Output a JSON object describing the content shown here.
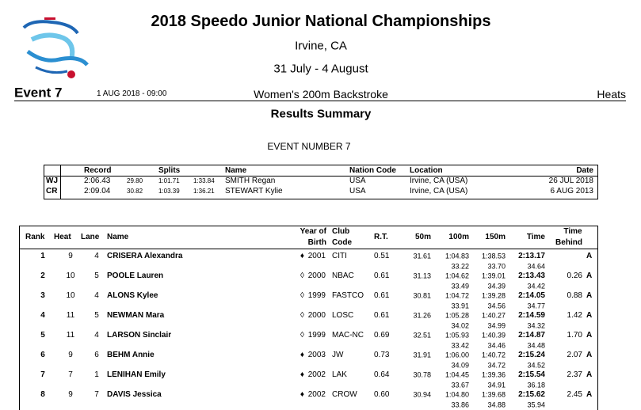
{
  "header": {
    "title": "2018 Speedo Junior National Championships",
    "location": "Irvine, CA",
    "dates": "31 July -  4 August"
  },
  "event": {
    "label": "Event 7",
    "datetime": "1 AUG 2018 - 09:00",
    "name": "Women's 200m Backstroke",
    "round": "Heats"
  },
  "summary_title": "Results Summary",
  "event_number": "EVENT NUMBER 7",
  "records": {
    "headers": [
      "Record",
      "Splits",
      "Name",
      "Nation Code",
      "Location",
      "Date"
    ],
    "rows": [
      {
        "code": "WJ",
        "time": "2:06.43",
        "splits": [
          "29.80",
          "1:01.71",
          "1:33.84"
        ],
        "name": "SMITH Regan",
        "nation": "USA",
        "location": "Irvine, CA (USA)",
        "date": "26 JUL 2018"
      },
      {
        "code": "CR",
        "time": "2:09.04",
        "splits": [
          "30.82",
          "1:03.39",
          "1:36.21"
        ],
        "name": "STEWART Kylie",
        "nation": "USA",
        "location": "Irvine, CA (USA)",
        "date": "6 AUG 2013"
      }
    ]
  },
  "results": {
    "headers": {
      "rank": "Rank",
      "heat": "Heat",
      "lane": "Lane",
      "name": "Name",
      "yob": [
        "Year of",
        "Birth"
      ],
      "club": [
        "Club",
        "Code"
      ],
      "rt": "R.T.",
      "s50": "50m",
      "s100": "100m",
      "s150": "150m",
      "time": "Time",
      "behind": [
        "Time",
        "Behind"
      ]
    },
    "rows": [
      {
        "rank": "1",
        "heat": "9",
        "lane": "4",
        "name": "CRISERA Alexandra",
        "marker": "♦",
        "yob": "2001",
        "club": "CITI",
        "rt": "0.51",
        "s50": "31.61",
        "s100": "1:04.83",
        "s150": "1:38.53",
        "time": "2:13.17",
        "qual": "A",
        "laps": [
          "33.22",
          "33.70",
          "34.64"
        ]
      },
      {
        "rank": "2",
        "heat": "10",
        "lane": "5",
        "name": "POOLE Lauren",
        "marker": "◊",
        "yob": "2000",
        "club": "NBAC",
        "rt": "0.61",
        "s50": "31.13",
        "s100": "1:04.62",
        "s150": "1:39.01",
        "time": "2:13.43",
        "behind": "0.26",
        "qual": "A",
        "laps": [
          "33.49",
          "34.39",
          "34.42"
        ]
      },
      {
        "rank": "3",
        "heat": "10",
        "lane": "4",
        "name": "ALONS Kylee",
        "marker": "◊",
        "yob": "1999",
        "club": "FASTCO",
        "rt": "0.61",
        "s50": "30.81",
        "s100": "1:04.72",
        "s150": "1:39.28",
        "time": "2:14.05",
        "behind": "0.88",
        "qual": "A",
        "laps": [
          "33.91",
          "34.56",
          "34.77"
        ]
      },
      {
        "rank": "4",
        "heat": "11",
        "lane": "5",
        "name": "NEWMAN Mara",
        "marker": "◊",
        "yob": "2000",
        "club": "LOSC",
        "rt": "0.61",
        "s50": "31.26",
        "s100": "1:05.28",
        "s150": "1:40.27",
        "time": "2:14.59",
        "behind": "1.42",
        "qual": "A",
        "laps": [
          "34.02",
          "34.99",
          "34.32"
        ]
      },
      {
        "rank": "5",
        "heat": "11",
        "lane": "4",
        "name": "LARSON Sinclair",
        "marker": "◊",
        "yob": "1999",
        "club": "MAC-NC",
        "rt": "0.69",
        "s50": "32.51",
        "s100": "1:05.93",
        "s150": "1:40.39",
        "time": "2:14.87",
        "behind": "1.70",
        "qual": "A",
        "laps": [
          "33.42",
          "34.46",
          "34.48"
        ]
      },
      {
        "rank": "6",
        "heat": "9",
        "lane": "6",
        "name": "BEHM Annie",
        "marker": "♦",
        "yob": "2003",
        "club": "JW",
        "rt": "0.73",
        "s50": "31.91",
        "s100": "1:06.00",
        "s150": "1:40.72",
        "time": "2:15.24",
        "behind": "2.07",
        "qual": "A",
        "laps": [
          "34.09",
          "34.72",
          "34.52"
        ]
      },
      {
        "rank": "7",
        "heat": "7",
        "lane": "1",
        "name": "LENIHAN Emily",
        "marker": "♦",
        "yob": "2002",
        "club": "LAK",
        "rt": "0.64",
        "s50": "30.78",
        "s100": "1:04.45",
        "s150": "1:39.36",
        "time": "2:15.54",
        "behind": "2.37",
        "qual": "A",
        "laps": [
          "33.67",
          "34.91",
          "36.18"
        ]
      },
      {
        "rank": "8",
        "heat": "9",
        "lane": "7",
        "name": "DAVIS Jessica",
        "marker": "♦",
        "yob": "2002",
        "club": "CROW",
        "rt": "0.60",
        "s50": "30.94",
        "s100": "1:04.80",
        "s150": "1:39.68",
        "time": "2:15.62",
        "behind": "2.45",
        "qual": "A",
        "laps": [
          "33.86",
          "34.88",
          "35.94"
        ]
      }
    ]
  }
}
